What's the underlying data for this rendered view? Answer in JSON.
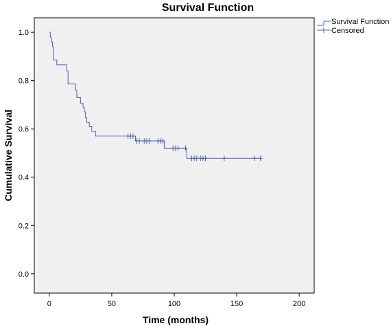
{
  "chart_data": {
    "type": "line",
    "title": "Survival Function",
    "xlabel": "Time (months)",
    "ylabel": "Cumulative Survival",
    "xlim": [
      -12,
      212
    ],
    "ylim": [
      -0.08,
      1.06
    ],
    "x_ticks": [
      0,
      50,
      100,
      150,
      200
    ],
    "y_ticks": [
      0.0,
      0.2,
      0.4,
      0.6,
      0.8,
      1.0
    ],
    "x_tick_labels": [
      "0",
      "50",
      "100",
      "150",
      "200"
    ],
    "y_tick_labels": [
      "0.0",
      "0.2",
      "0.4",
      "0.6",
      "0.8",
      "1.0"
    ],
    "legend": {
      "placement": "top-right-outside",
      "entries": [
        "Survival Function",
        "Censored"
      ]
    },
    "colors": {
      "line": "#4a63b0",
      "plot_background": "#f0f0f0"
    },
    "grid": false,
    "series": [
      {
        "name": "Survival Function",
        "step": [
          [
            0,
            1.0
          ],
          [
            0.8,
            0.98
          ],
          [
            1.6,
            0.96
          ],
          [
            2.6,
            0.94
          ],
          [
            3.5,
            0.885
          ],
          [
            6,
            0.865
          ],
          [
            14,
            0.84
          ],
          [
            15,
            0.786
          ],
          [
            21,
            0.76
          ],
          [
            22,
            0.73
          ],
          [
            25,
            0.706
          ],
          [
            27,
            0.69
          ],
          [
            28,
            0.67
          ],
          [
            29,
            0.647
          ],
          [
            30,
            0.628
          ],
          [
            32,
            0.61
          ],
          [
            34,
            0.59
          ],
          [
            37,
            0.57
          ],
          [
            69,
            0.55
          ],
          [
            92,
            0.52
          ],
          [
            110,
            0.478
          ],
          [
            170,
            0.478
          ]
        ]
      },
      {
        "name": "Censored",
        "points": [
          [
            63,
            0.57
          ],
          [
            65,
            0.57
          ],
          [
            67,
            0.57
          ],
          [
            70,
            0.55
          ],
          [
            72,
            0.55
          ],
          [
            76,
            0.55
          ],
          [
            78,
            0.55
          ],
          [
            80,
            0.55
          ],
          [
            87,
            0.55
          ],
          [
            89,
            0.55
          ],
          [
            91,
            0.55
          ],
          [
            99,
            0.52
          ],
          [
            101,
            0.52
          ],
          [
            103,
            0.52
          ],
          [
            109,
            0.52
          ],
          [
            114,
            0.478
          ],
          [
            116,
            0.478
          ],
          [
            118,
            0.478
          ],
          [
            121,
            0.478
          ],
          [
            123,
            0.478
          ],
          [
            125,
            0.478
          ],
          [
            140,
            0.478
          ],
          [
            164,
            0.478
          ],
          [
            169,
            0.478
          ]
        ]
      }
    ]
  }
}
